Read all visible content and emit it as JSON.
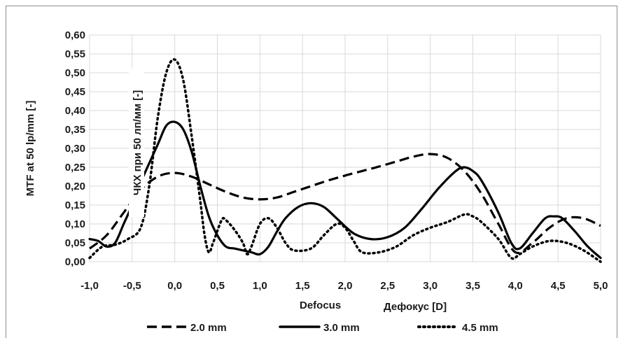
{
  "chart_data": {
    "type": "line",
    "xlabel": "Defocus",
    "xlabel_overlay": "Дефокус [D]",
    "ylabel": "MTF at 50 lp/mm [-]",
    "ylabel_overlay": "ЧКХ при 50 лп/мм [-]",
    "xlim": [
      -1.0,
      5.0
    ],
    "ylim": [
      0.0,
      0.6
    ],
    "x_ticks": [
      "-1,0",
      "-0,5",
      "0,0",
      "0,5",
      "1,0",
      "1,5",
      "2,0",
      "2,5",
      "3,0",
      "3,5",
      "4,0",
      "4,5",
      "5,0"
    ],
    "y_ticks": [
      "0,00",
      "0,05",
      "0,10",
      "0,15",
      "0,20",
      "0,25",
      "0,30",
      "0,35",
      "0,40",
      "0,45",
      "0,50",
      "0,55",
      "0,60"
    ],
    "grid": true,
    "legend_position": "bottom",
    "series": [
      {
        "name": "2.0 mm",
        "style": "dashed",
        "color": "#000000",
        "points": [
          [
            -1.0,
            0.035
          ],
          [
            -0.8,
            0.07
          ],
          [
            -0.6,
            0.13
          ],
          [
            -0.4,
            0.19
          ],
          [
            -0.2,
            0.225
          ],
          [
            0.0,
            0.235
          ],
          [
            0.2,
            0.225
          ],
          [
            0.4,
            0.205
          ],
          [
            0.6,
            0.185
          ],
          [
            0.8,
            0.17
          ],
          [
            1.0,
            0.165
          ],
          [
            1.2,
            0.17
          ],
          [
            1.4,
            0.185
          ],
          [
            1.6,
            0.2
          ],
          [
            1.8,
            0.215
          ],
          [
            2.0,
            0.228
          ],
          [
            2.2,
            0.24
          ],
          [
            2.4,
            0.252
          ],
          [
            2.6,
            0.265
          ],
          [
            2.8,
            0.278
          ],
          [
            3.0,
            0.285
          ],
          [
            3.2,
            0.275
          ],
          [
            3.4,
            0.24
          ],
          [
            3.6,
            0.18
          ],
          [
            3.8,
            0.1
          ],
          [
            4.0,
            0.025
          ],
          [
            4.2,
            0.05
          ],
          [
            4.4,
            0.09
          ],
          [
            4.6,
            0.115
          ],
          [
            4.8,
            0.115
          ],
          [
            5.0,
            0.095
          ]
        ]
      },
      {
        "name": "3.0 mm",
        "style": "solid",
        "color": "#000000",
        "points": [
          [
            -1.0,
            0.06
          ],
          [
            -0.9,
            0.055
          ],
          [
            -0.8,
            0.04
          ],
          [
            -0.7,
            0.05
          ],
          [
            -0.6,
            0.1
          ],
          [
            -0.5,
            0.15
          ],
          [
            -0.4,
            0.21
          ],
          [
            -0.2,
            0.31
          ],
          [
            -0.1,
            0.36
          ],
          [
            0.0,
            0.37
          ],
          [
            0.1,
            0.35
          ],
          [
            0.2,
            0.29
          ],
          [
            0.3,
            0.2
          ],
          [
            0.4,
            0.12
          ],
          [
            0.5,
            0.07
          ],
          [
            0.6,
            0.04
          ],
          [
            0.7,
            0.035
          ],
          [
            0.8,
            0.03
          ],
          [
            0.9,
            0.025
          ],
          [
            1.0,
            0.02
          ],
          [
            1.1,
            0.04
          ],
          [
            1.2,
            0.08
          ],
          [
            1.3,
            0.115
          ],
          [
            1.45,
            0.145
          ],
          [
            1.6,
            0.155
          ],
          [
            1.75,
            0.145
          ],
          [
            1.9,
            0.115
          ],
          [
            2.1,
            0.075
          ],
          [
            2.3,
            0.06
          ],
          [
            2.5,
            0.065
          ],
          [
            2.7,
            0.09
          ],
          [
            2.9,
            0.14
          ],
          [
            3.1,
            0.195
          ],
          [
            3.3,
            0.24
          ],
          [
            3.4,
            0.25
          ],
          [
            3.5,
            0.24
          ],
          [
            3.6,
            0.215
          ],
          [
            3.8,
            0.13
          ],
          [
            3.95,
            0.05
          ],
          [
            4.05,
            0.035
          ],
          [
            4.2,
            0.075
          ],
          [
            4.35,
            0.115
          ],
          [
            4.45,
            0.12
          ],
          [
            4.55,
            0.115
          ],
          [
            4.7,
            0.08
          ],
          [
            4.85,
            0.04
          ],
          [
            5.0,
            0.01
          ]
        ]
      },
      {
        "name": "4.5 mm",
        "style": "dotted",
        "color": "#000000",
        "points": [
          [
            -1.0,
            0.01
          ],
          [
            -0.85,
            0.04
          ],
          [
            -0.7,
            0.045
          ],
          [
            -0.55,
            0.06
          ],
          [
            -0.4,
            0.09
          ],
          [
            -0.3,
            0.2
          ],
          [
            -0.2,
            0.38
          ],
          [
            -0.1,
            0.5
          ],
          [
            0.0,
            0.535
          ],
          [
            0.1,
            0.48
          ],
          [
            0.2,
            0.33
          ],
          [
            0.3,
            0.16
          ],
          [
            0.35,
            0.07
          ],
          [
            0.4,
            0.025
          ],
          [
            0.45,
            0.05
          ],
          [
            0.55,
            0.11
          ],
          [
            0.6,
            0.11
          ],
          [
            0.7,
            0.085
          ],
          [
            0.8,
            0.05
          ],
          [
            0.85,
            0.02
          ],
          [
            0.9,
            0.04
          ],
          [
            1.0,
            0.1
          ],
          [
            1.1,
            0.115
          ],
          [
            1.2,
            0.09
          ],
          [
            1.3,
            0.05
          ],
          [
            1.4,
            0.03
          ],
          [
            1.6,
            0.035
          ],
          [
            1.75,
            0.07
          ],
          [
            1.9,
            0.1
          ],
          [
            2.0,
            0.09
          ],
          [
            2.1,
            0.055
          ],
          [
            2.2,
            0.025
          ],
          [
            2.4,
            0.025
          ],
          [
            2.6,
            0.04
          ],
          [
            2.8,
            0.07
          ],
          [
            3.0,
            0.09
          ],
          [
            3.2,
            0.105
          ],
          [
            3.4,
            0.125
          ],
          [
            3.5,
            0.12
          ],
          [
            3.6,
            0.105
          ],
          [
            3.8,
            0.06
          ],
          [
            3.95,
            0.01
          ],
          [
            4.05,
            0.02
          ],
          [
            4.2,
            0.04
          ],
          [
            4.4,
            0.055
          ],
          [
            4.6,
            0.05
          ],
          [
            4.8,
            0.03
          ],
          [
            5.0,
            0.0
          ]
        ]
      }
    ]
  }
}
